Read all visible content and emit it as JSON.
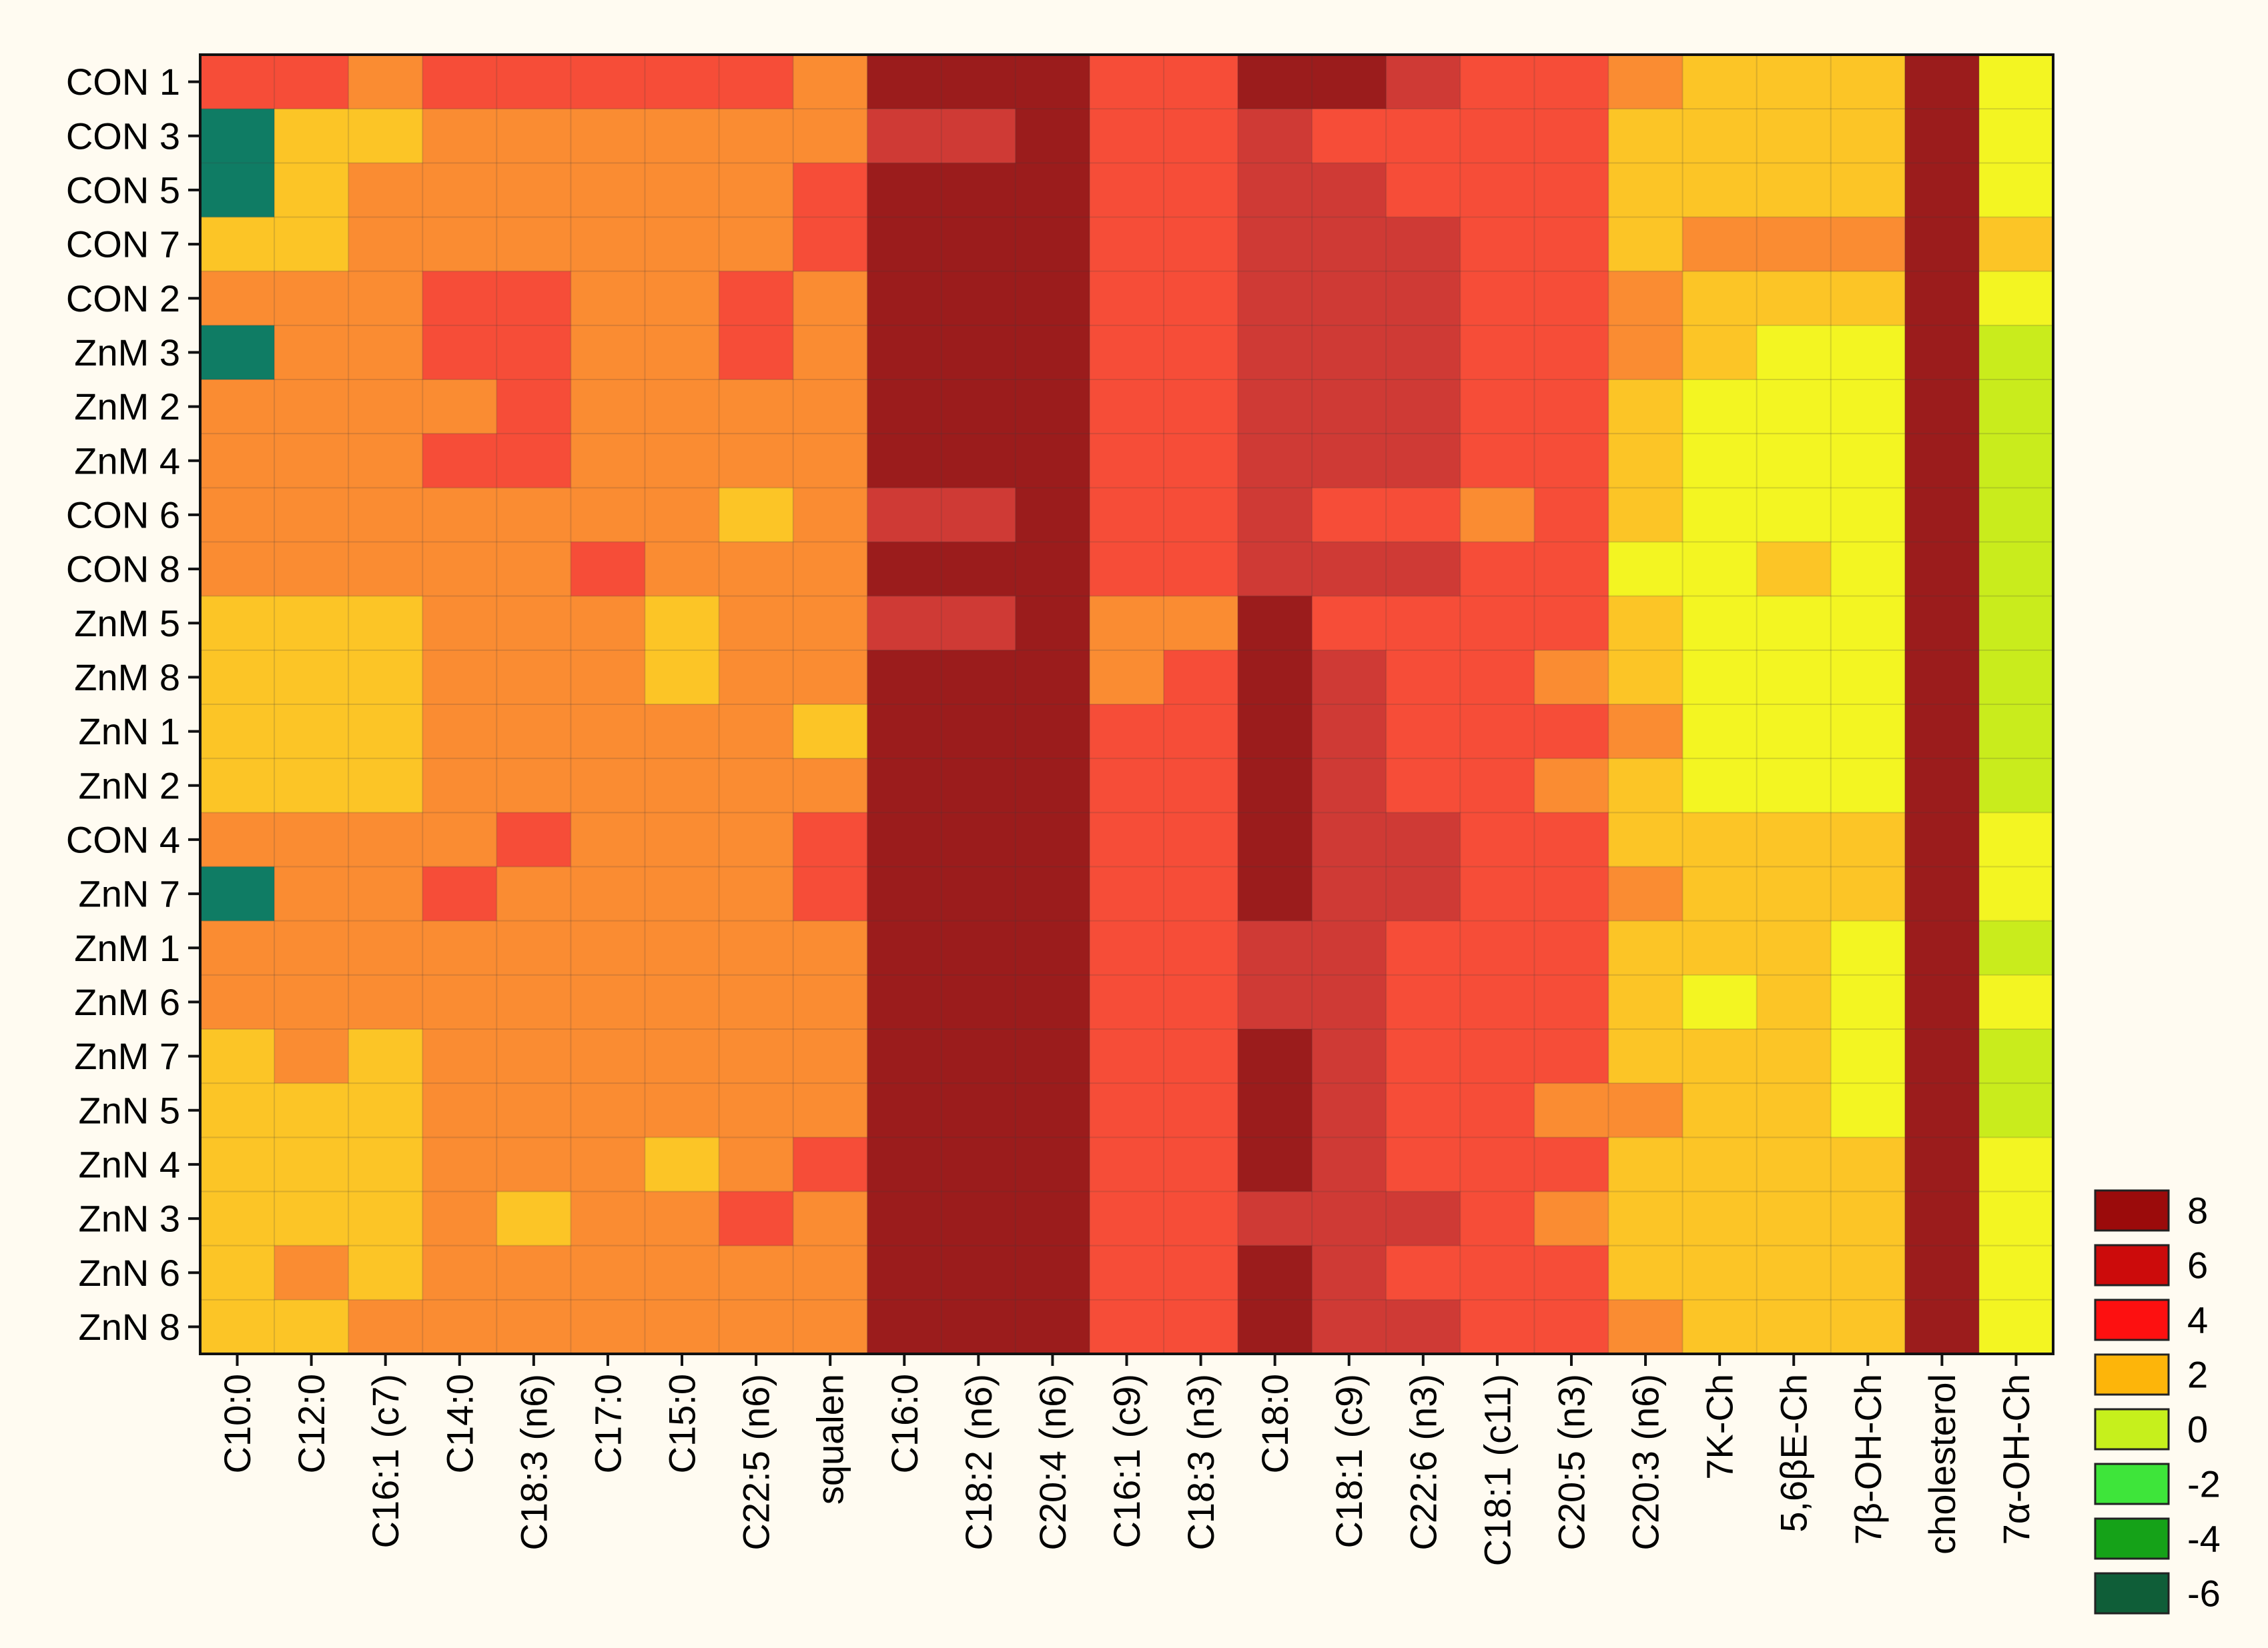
{
  "chart_data": {
    "type": "heatmap",
    "title": "",
    "rows": [
      "CON 1",
      "CON 3",
      "CON 5",
      "CON 7",
      "CON 2",
      "ZnM 3",
      "ZnM 2",
      "ZnM 4",
      "CON 6",
      "CON 8",
      "ZnM 5",
      "ZnM 8",
      "ZnN 1",
      "ZnN 2",
      "CON 4",
      "ZnN 7",
      "ZnM 1",
      "ZnM 6",
      "ZnM 7",
      "ZnN 5",
      "ZnN 4",
      "ZnN 3",
      "ZnN 6",
      "ZnN 8"
    ],
    "columns": [
      "C10:0",
      "C12:0",
      "C16:1 (c7)",
      "C14:0",
      "C18:3 (n6)",
      "C17:0",
      "C15:0",
      "C22:5 (n6)",
      "squalen",
      "C16:0",
      "C18:2 (n6)",
      "C20:4 (n6)",
      "C16:1 (c9)",
      "C18:3 (n3)",
      "C18:0",
      "C18:1 (c9)",
      "C22:6 (n3)",
      "C18:1 (c11)",
      "C20:5 (n3)",
      "C20:3 (n6)",
      "7K-Ch",
      "5,6βE-Ch",
      "7β-OH-Ch",
      "cholesterol",
      "7α-OH-Ch"
    ],
    "values": [
      [
        5,
        5,
        3,
        5,
        4.5,
        4.5,
        4.5,
        4.5,
        3,
        8,
        7,
        7,
        4.5,
        4.5,
        7,
        7,
        6,
        5,
        5,
        3,
        2,
        2,
        2,
        7,
        0.5
      ],
      [
        -6,
        1.5,
        1.5,
        3,
        3,
        3,
        3,
        3,
        3,
        6,
        6,
        7,
        4,
        4,
        6,
        5,
        4.5,
        4.5,
        4.5,
        2,
        2,
        2,
        2,
        7,
        0.5
      ],
      [
        -6,
        1.5,
        3,
        3,
        3,
        3,
        3,
        3,
        4,
        7,
        7,
        7,
        4,
        4,
        6,
        6,
        4.5,
        4.5,
        4.5,
        2,
        2,
        2,
        2,
        7,
        0.5
      ],
      [
        1.5,
        1.5,
        3,
        3,
        3,
        3,
        3,
        3,
        4,
        7,
        7,
        7,
        4.5,
        4,
        6,
        6,
        6,
        4.5,
        4.5,
        2,
        3,
        3,
        3,
        7.5,
        2
      ],
      [
        3,
        3,
        3,
        4.5,
        4.5,
        3,
        3,
        4.5,
        3,
        7,
        7,
        7,
        4.5,
        4.5,
        6,
        6,
        6,
        4.5,
        4.5,
        3,
        2,
        2,
        2,
        7,
        0.5
      ],
      [
        -6,
        3,
        3,
        4.5,
        4.5,
        3,
        3,
        4.5,
        3,
        7,
        7,
        7,
        4.5,
        4.5,
        6,
        6,
        6,
        4.5,
        4.5,
        3,
        2,
        1,
        1,
        7,
        -0.5
      ],
      [
        3,
        3,
        3,
        3,
        4.5,
        3,
        3,
        3,
        3,
        7,
        7,
        8,
        4.5,
        4.5,
        6,
        6,
        6,
        4.5,
        4.5,
        2,
        1,
        1,
        1,
        7,
        -0.5
      ],
      [
        3,
        3,
        3,
        4.5,
        4.5,
        3,
        3,
        3,
        3,
        7,
        7,
        7,
        4.5,
        4.5,
        6,
        6,
        6,
        4.5,
        4.5,
        2,
        1,
        1,
        1,
        7,
        -0.5
      ],
      [
        3,
        3,
        3,
        3,
        3,
        3,
        3,
        1.5,
        3,
        6,
        6,
        7,
        4.5,
        4,
        6,
        5,
        5,
        3,
        4.5,
        2,
        1,
        1,
        1,
        7,
        -0.5
      ],
      [
        3,
        3,
        3,
        3,
        3,
        4.5,
        3,
        3,
        3,
        7,
        7,
        7,
        4.5,
        4,
        6,
        6,
        6,
        4.5,
        5,
        1,
        1,
        2,
        1,
        7.5,
        -0.5
      ],
      [
        1.5,
        1.5,
        1.5,
        3,
        3,
        3,
        1.5,
        3,
        3,
        6,
        6,
        7,
        3,
        3,
        7,
        5,
        5,
        4.5,
        4.5,
        2,
        1,
        1,
        1,
        7,
        -0.5
      ],
      [
        1.5,
        1.5,
        1.5,
        3,
        3,
        3,
        1.5,
        3,
        3,
        7,
        7,
        7,
        3,
        4,
        7,
        6,
        5,
        4.5,
        3,
        2,
        1,
        1,
        1,
        7,
        -0.5
      ],
      [
        1.5,
        1.5,
        1.5,
        3,
        3,
        3,
        3,
        3,
        1.5,
        7,
        7,
        7,
        4,
        4,
        7,
        6,
        5,
        4.5,
        4.5,
        3,
        1,
        1,
        1,
        7,
        -0.5
      ],
      [
        1.5,
        1.5,
        1.5,
        3,
        3,
        3,
        3,
        3,
        3,
        7,
        7,
        7,
        4,
        4,
        7,
        6,
        5,
        4.5,
        3,
        2,
        1,
        1,
        1,
        7,
        -0.5
      ],
      [
        3,
        3,
        3,
        3,
        4.5,
        3,
        3,
        3,
        4,
        7,
        7,
        7,
        4,
        4,
        7,
        6,
        6,
        4.5,
        4.5,
        2,
        2,
        2,
        2,
        7.5,
        0.5
      ],
      [
        -6,
        3,
        3,
        4.5,
        3,
        3,
        3,
        3,
        5,
        7,
        7,
        7,
        4,
        4,
        7,
        6,
        6,
        4.5,
        4.5,
        3,
        2,
        2,
        2,
        7,
        0.5
      ],
      [
        3,
        3,
        3,
        3,
        3,
        3,
        3,
        3,
        3,
        7,
        7,
        7,
        4.5,
        4,
        6,
        6,
        5,
        4.5,
        4.5,
        2,
        2,
        2,
        1,
        7.5,
        0
      ],
      [
        3,
        3,
        3,
        3,
        3,
        3,
        3,
        3,
        3,
        7,
        7,
        7,
        4,
        4,
        6,
        6,
        5,
        4.5,
        4.5,
        2,
        1,
        2,
        1,
        7,
        0.5
      ],
      [
        1.5,
        3,
        1.5,
        3,
        3,
        3,
        3,
        3,
        3,
        7,
        7,
        7,
        4,
        4,
        7,
        6,
        5,
        4.5,
        4.5,
        2,
        2,
        2,
        1,
        7,
        -0.5
      ],
      [
        1.5,
        1.5,
        1.5,
        3,
        3,
        3,
        3,
        3,
        3,
        7,
        7,
        7,
        4,
        4,
        7,
        6,
        5,
        4.5,
        3,
        3,
        2,
        2,
        1,
        7.5,
        -0.5
      ],
      [
        1.5,
        1.5,
        1.5,
        3,
        3,
        3,
        1.5,
        3,
        4,
        7,
        7,
        7,
        4,
        4,
        7,
        6,
        5,
        4.5,
        4.5,
        2,
        2,
        2,
        2,
        7.5,
        0.5
      ],
      [
        1.5,
        1.5,
        1.5,
        3,
        1.5,
        3,
        3,
        4.5,
        3,
        7,
        7,
        7,
        4,
        4,
        6,
        6,
        6,
        4.5,
        3,
        2,
        2,
        2,
        2,
        7,
        0.5
      ],
      [
        1.5,
        3,
        1.5,
        3,
        3,
        3,
        3,
        3,
        3,
        7,
        7,
        7,
        4,
        4,
        7,
        6,
        5,
        4.5,
        4.5,
        2,
        2,
        2,
        2,
        7,
        0.5
      ],
      [
        1.5,
        1.5,
        3,
        3,
        3,
        3,
        3,
        3,
        3,
        7,
        7,
        7,
        4,
        4,
        7,
        6,
        6,
        4.5,
        4.5,
        3,
        2,
        2,
        2,
        7,
        0.5
      ]
    ],
    "color_scale": [
      {
        "label": "8",
        "min": 7.0,
        "color": "#9b1c1c"
      },
      {
        "label": "6",
        "min": 5.5,
        "color": "#cf3a35"
      },
      {
        "label": "4",
        "min": 3.8,
        "color": "#f64d38"
      },
      {
        "label": "2",
        "min": 2.5,
        "color": "#fa8c32"
      },
      {
        "label": "0",
        "min": 1.2,
        "color": "#fcc526"
      },
      {
        "label": "-2",
        "min": 0.3,
        "color": "#f3f522"
      },
      {
        "label": "-4",
        "min": -1.0,
        "color": "#c9ec1c"
      },
      {
        "label": "-6",
        "min": -99,
        "color": "#0f7c64"
      }
    ],
    "legend_swatches": [
      {
        "label": "8",
        "color": "#9b0b0b"
      },
      {
        "label": "6",
        "color": "#cc0b0b"
      },
      {
        "label": "4",
        "color": "#fd1010"
      },
      {
        "label": "2",
        "color": "#fdb50a"
      },
      {
        "label": "0",
        "color": "#c6f01c"
      },
      {
        "label": "-2",
        "color": "#3ee53a"
      },
      {
        "label": "-4",
        "color": "#15a218"
      },
      {
        "label": "-6",
        "color": "#0f5e38"
      }
    ],
    "xlabel": "",
    "ylabel": "",
    "grid": true,
    "legend_position": "bottom-right"
  }
}
